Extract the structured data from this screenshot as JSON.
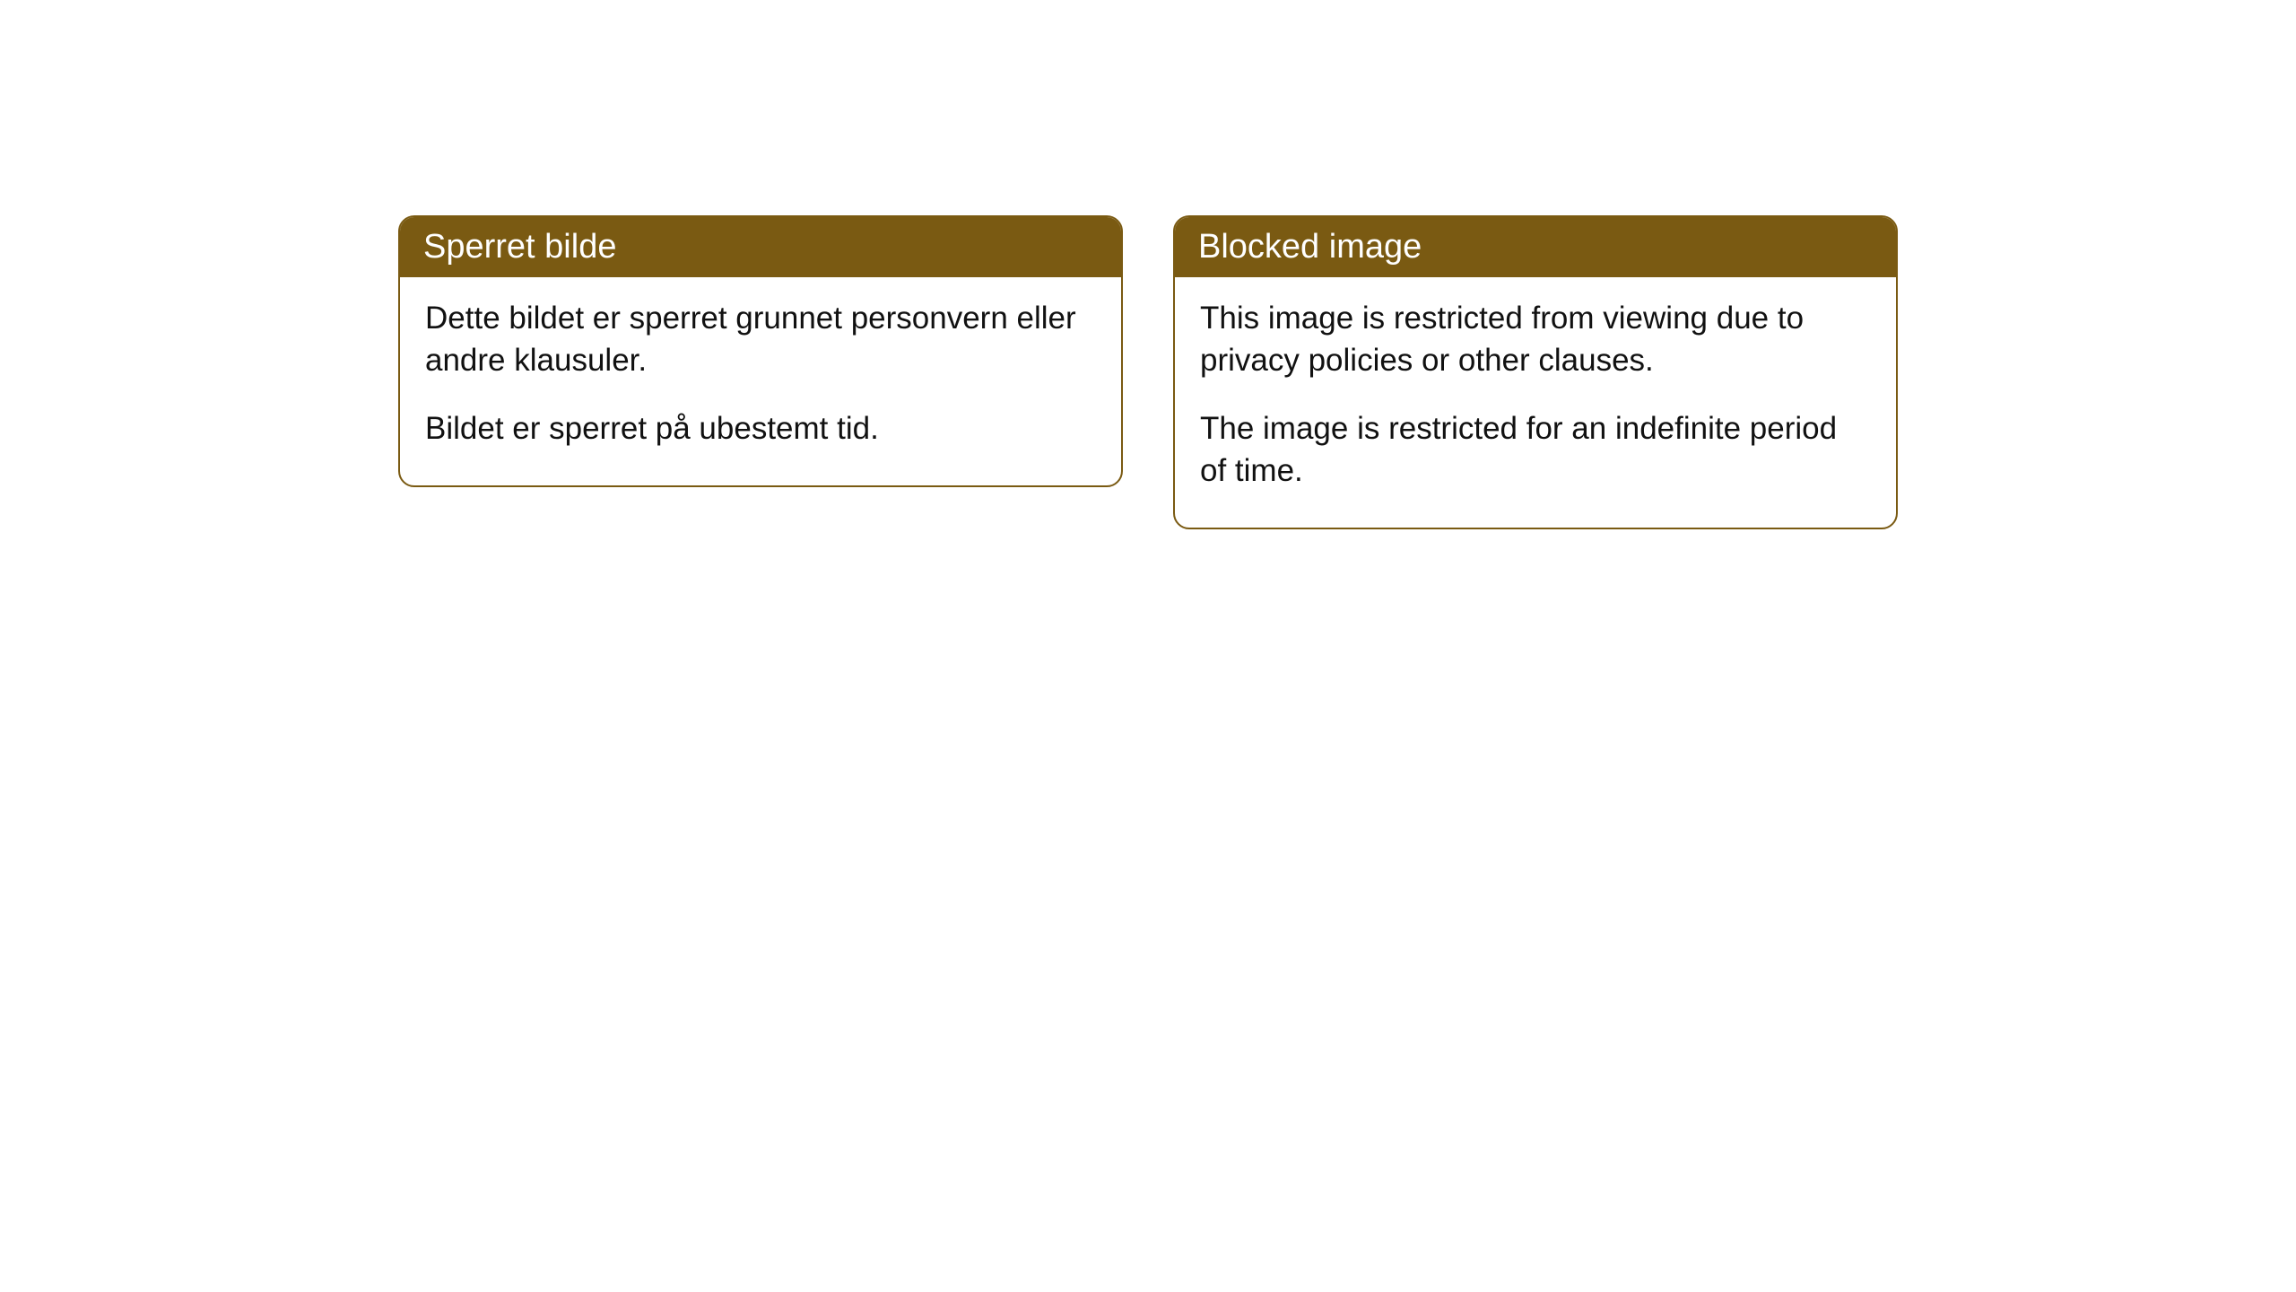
{
  "cards": {
    "left": {
      "title": "Sperret bilde",
      "paragraph1": "Dette bildet er sperret grunnet personvern eller andre klausuler.",
      "paragraph2": "Bildet er sperret på ubestemt tid."
    },
    "right": {
      "title": "Blocked image",
      "paragraph1": "This image is restricted from viewing due to privacy policies or other clauses.",
      "paragraph2": "The image is restricted for an indefinite period of time."
    }
  },
  "colors": {
    "header_bg": "#7a5a12",
    "header_text": "#ffffff",
    "border": "#7a5a12",
    "body_text": "#111111",
    "page_bg": "#ffffff"
  }
}
